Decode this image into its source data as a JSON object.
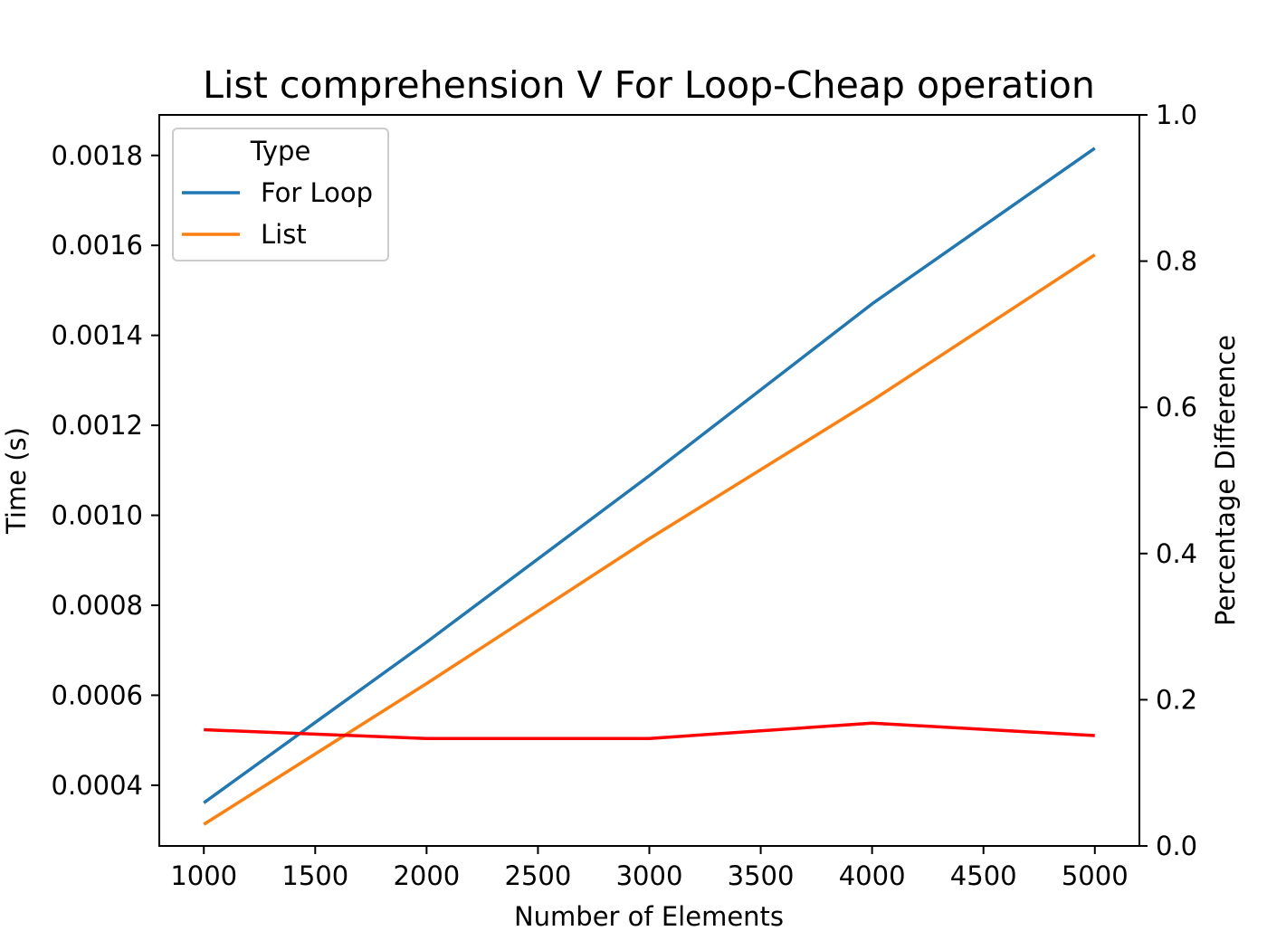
{
  "chart_data": {
    "type": "line",
    "title": "List comprehension V For Loop-Cheap operation",
    "xlabel": "Number of Elements",
    "ylabel": "Time (s)",
    "y2label": "Percentage Difference",
    "x": [
      1000,
      2000,
      3000,
      4000,
      5000
    ],
    "xlim": [
      800,
      5200
    ],
    "ylim": [
      0.000265,
      0.00189
    ],
    "y2lim": [
      0.0,
      1.0
    ],
    "xticks": [
      1000,
      1500,
      2000,
      2500,
      3000,
      3500,
      4000,
      4500,
      5000
    ],
    "xtick_labels": [
      "1000",
      "1500",
      "2000",
      "2500",
      "3000",
      "3500",
      "4000",
      "4500",
      "5000"
    ],
    "yticks": [
      0.0004,
      0.0006,
      0.0008,
      0.001,
      0.0012,
      0.0014,
      0.0016,
      0.0018
    ],
    "ytick_labels": [
      "0.0004",
      "0.0006",
      "0.0008",
      "0.0010",
      "0.0012",
      "0.0014",
      "0.0016",
      "0.0018"
    ],
    "y2ticks": [
      0.0,
      0.2,
      0.4,
      0.6,
      0.8,
      1.0
    ],
    "y2tick_labels": [
      "0.0",
      "0.2",
      "0.4",
      "0.6",
      "0.8",
      "1.0"
    ],
    "grid": false,
    "legend": {
      "title": "Type",
      "placement": "upper-left"
    },
    "series": [
      {
        "name": "For Loop",
        "axis": "left",
        "color": "#1f77b4",
        "in_legend": true,
        "values": [
          0.000361,
          0.000718,
          0.001088,
          0.00147,
          0.001816
        ]
      },
      {
        "name": "List",
        "axis": "left",
        "color": "#ff7f0e",
        "in_legend": true,
        "values": [
          0.000313,
          0.000626,
          0.000948,
          0.001255,
          0.001579
        ]
      },
      {
        "axis": "right",
        "color": "#ff0000",
        "in_legend": false,
        "values": [
          0.159,
          0.147,
          0.147,
          0.168,
          0.151
        ]
      }
    ]
  }
}
